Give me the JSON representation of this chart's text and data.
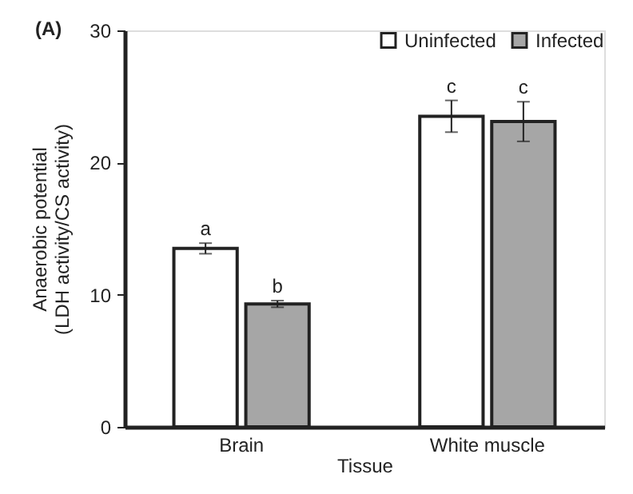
{
  "chart_data": {
    "type": "bar",
    "categories": [
      "Brain",
      "White muscle"
    ],
    "series": [
      {
        "name": "Uninfected",
        "color": "#ffffff",
        "values": [
          13.5,
          23.5
        ],
        "errors": [
          0.4,
          1.2
        ],
        "value_labels": [
          "a",
          "c"
        ]
      },
      {
        "name": "Infected",
        "color": "#a6a6a6",
        "values": [
          9.3,
          23.1
        ],
        "errors": [
          0.25,
          1.5
        ],
        "value_labels": [
          "b",
          "c"
        ]
      }
    ],
    "xlabel": "Tissue",
    "ylabel": "Anaerobic potential\n(LDH activity/CS activity)",
    "ylim": [
      0,
      30
    ],
    "yticks": [
      0,
      10,
      20,
      30
    ],
    "grid": false,
    "legend": "top right",
    "annotations": [
      "(A)"
    ]
  }
}
